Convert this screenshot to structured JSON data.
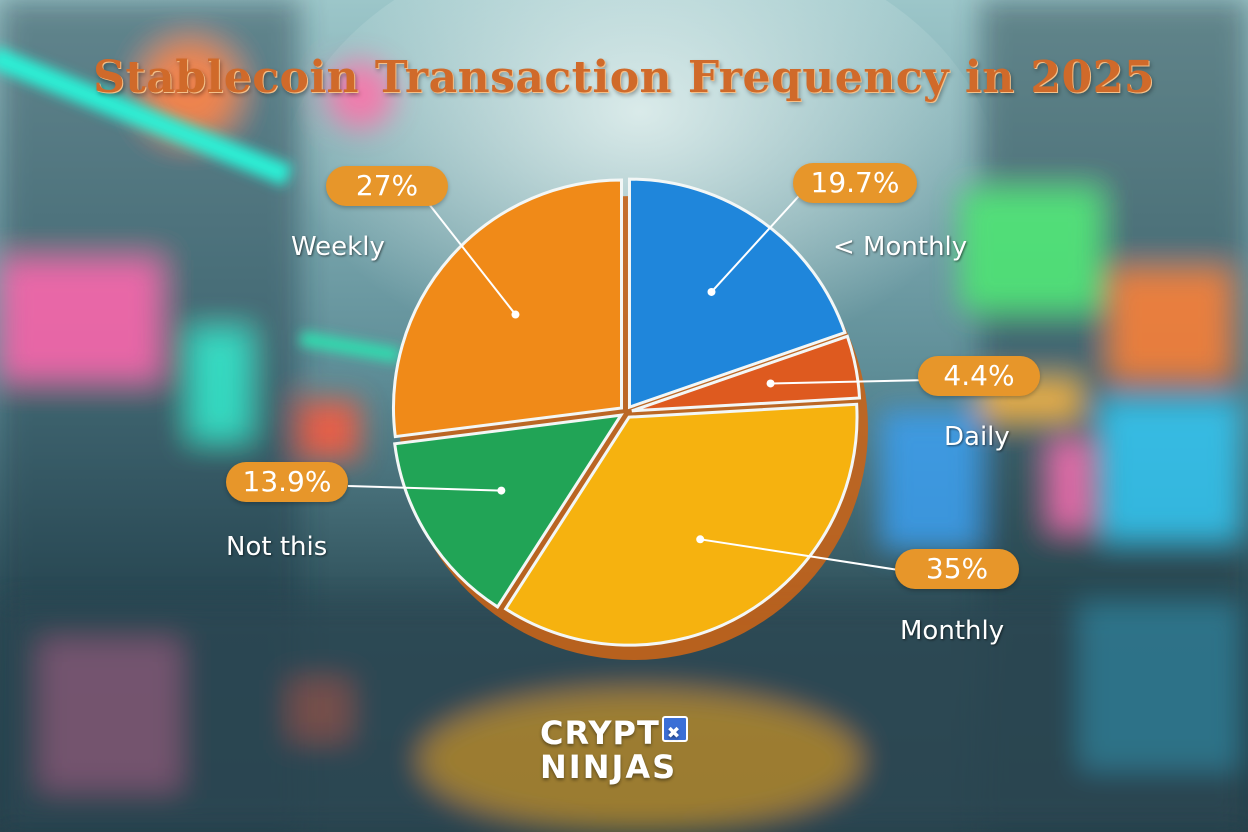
{
  "title": "Stablecoin Transaction Frequency in 2025",
  "chart_data": {
    "type": "pie",
    "title": "Stablecoin Transaction Frequency in 2025",
    "categories": [
      "< Monthly",
      "Daily",
      "Monthly",
      "Not this",
      "Weekly"
    ],
    "values": [
      19.7,
      4.4,
      35,
      13.9,
      27
    ],
    "value_labels": [
      "19.7%",
      "4.4%",
      "35%",
      "13.9%",
      "27%"
    ],
    "colors": [
      "#1f86db",
      "#de5a1f",
      "#f6b20f",
      "#21a456",
      "#f08a18"
    ],
    "start": "12 o'clock, clockwise",
    "exploded": true
  },
  "logo": {
    "line1": "CRYPT",
    "line2": "NINJAS"
  }
}
